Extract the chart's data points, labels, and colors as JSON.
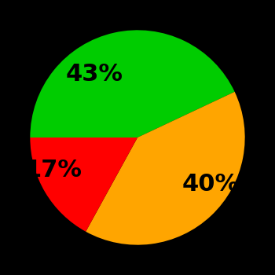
{
  "slices": [
    43,
    40,
    17
  ],
  "labels": [
    "43%",
    "40%",
    "17%"
  ],
  "colors": [
    "#00CC00",
    "#FFA500",
    "#FF0000"
  ],
  "background_color": "#000000",
  "startangle": 180,
  "label_fontsize": 22,
  "label_fontweight": "bold",
  "labeldistance": 0.6
}
